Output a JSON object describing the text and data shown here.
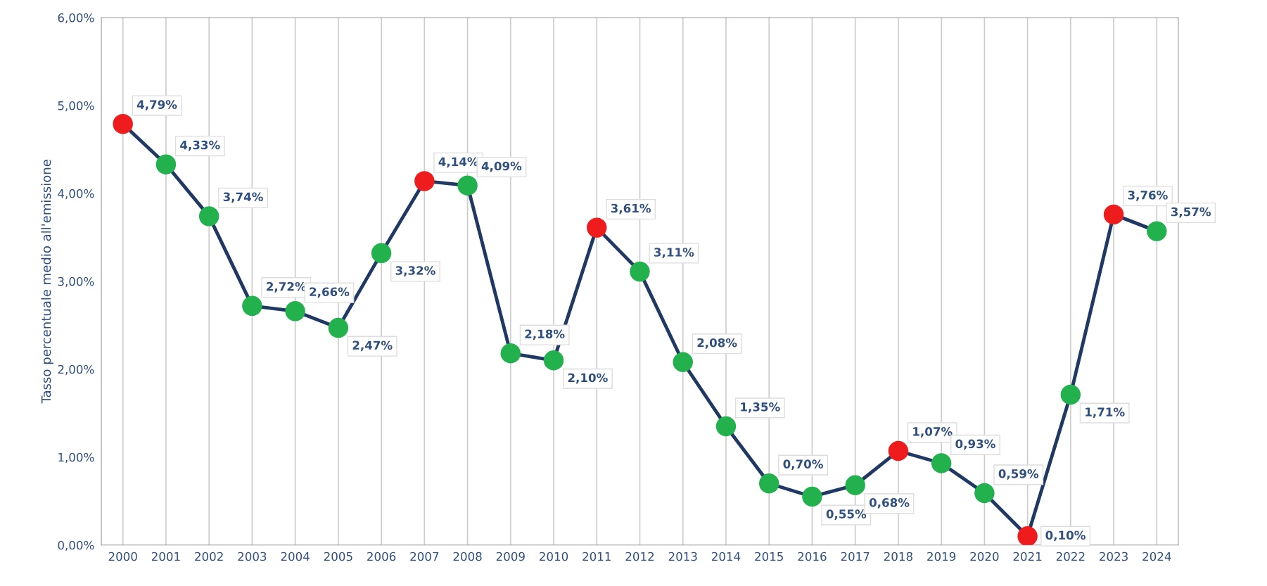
{
  "chart_data": {
    "type": "line",
    "ylabel": "Tasso percentuale medio all'emissione",
    "categories": [
      "2000",
      "2001",
      "2002",
      "2003",
      "2004",
      "2005",
      "2006",
      "2007",
      "2008",
      "2009",
      "2010",
      "2011",
      "2012",
      "2013",
      "2014",
      "2015",
      "2016",
      "2017",
      "2018",
      "2019",
      "2020",
      "2021",
      "2022",
      "2023",
      "2024"
    ],
    "series": [
      {
        "color": "#1f3864",
        "values": [
          4.79,
          4.33,
          3.74,
          2.72,
          2.66,
          2.47,
          3.32,
          4.14,
          4.09,
          2.18,
          2.1,
          3.61,
          3.11,
          2.08,
          1.35,
          0.7,
          0.55,
          0.68,
          1.07,
          0.93,
          0.59,
          0.1,
          1.71,
          3.76,
          3.57
        ],
        "colors": [
          "#ee1c1c",
          "#22b14c",
          "#22b14c",
          "#22b14c",
          "#22b14c",
          "#22b14c",
          "#22b14c",
          "#ee1c1c",
          "#22b14c",
          "#22b14c",
          "#22b14c",
          "#ee1c1c",
          "#22b14c",
          "#22b14c",
          "#22b14c",
          "#22b14c",
          "#22b14c",
          "#22b14c",
          "#ee1c1c",
          "#22b14c",
          "#22b14c",
          "#ee1c1c",
          "#22b14c",
          "#ee1c1c",
          "#22b14c"
        ],
        "value_labels": [
          "4,79%",
          "4,33%",
          "3,74%",
          "2,72%",
          "2,66%",
          "2,47%",
          "3,32%",
          "4,14%",
          "4,09%",
          "2,18%",
          "2,10%",
          "3,61%",
          "3,11%",
          "2,08%",
          "1,35%",
          "0,70%",
          "0,55%",
          "0,68%",
          "1,07%",
          "0,93%",
          "0,59%",
          "0,10%",
          "1,71%",
          "3,76%",
          "3,57%"
        ]
      }
    ],
    "ylim": [
      0,
      6
    ],
    "yticks": [
      {
        "value": 0,
        "label": "0,00%"
      },
      {
        "value": 1,
        "label": "1,00%"
      },
      {
        "value": 2,
        "label": "2,00%"
      },
      {
        "value": 3,
        "label": "3,00%"
      },
      {
        "value": 4,
        "label": "4,00%"
      },
      {
        "value": 5,
        "label": "5,00%"
      },
      {
        "value": 6,
        "label": "6,00%"
      }
    ],
    "grid": "x",
    "marker": "circle",
    "line_style": "solid"
  }
}
